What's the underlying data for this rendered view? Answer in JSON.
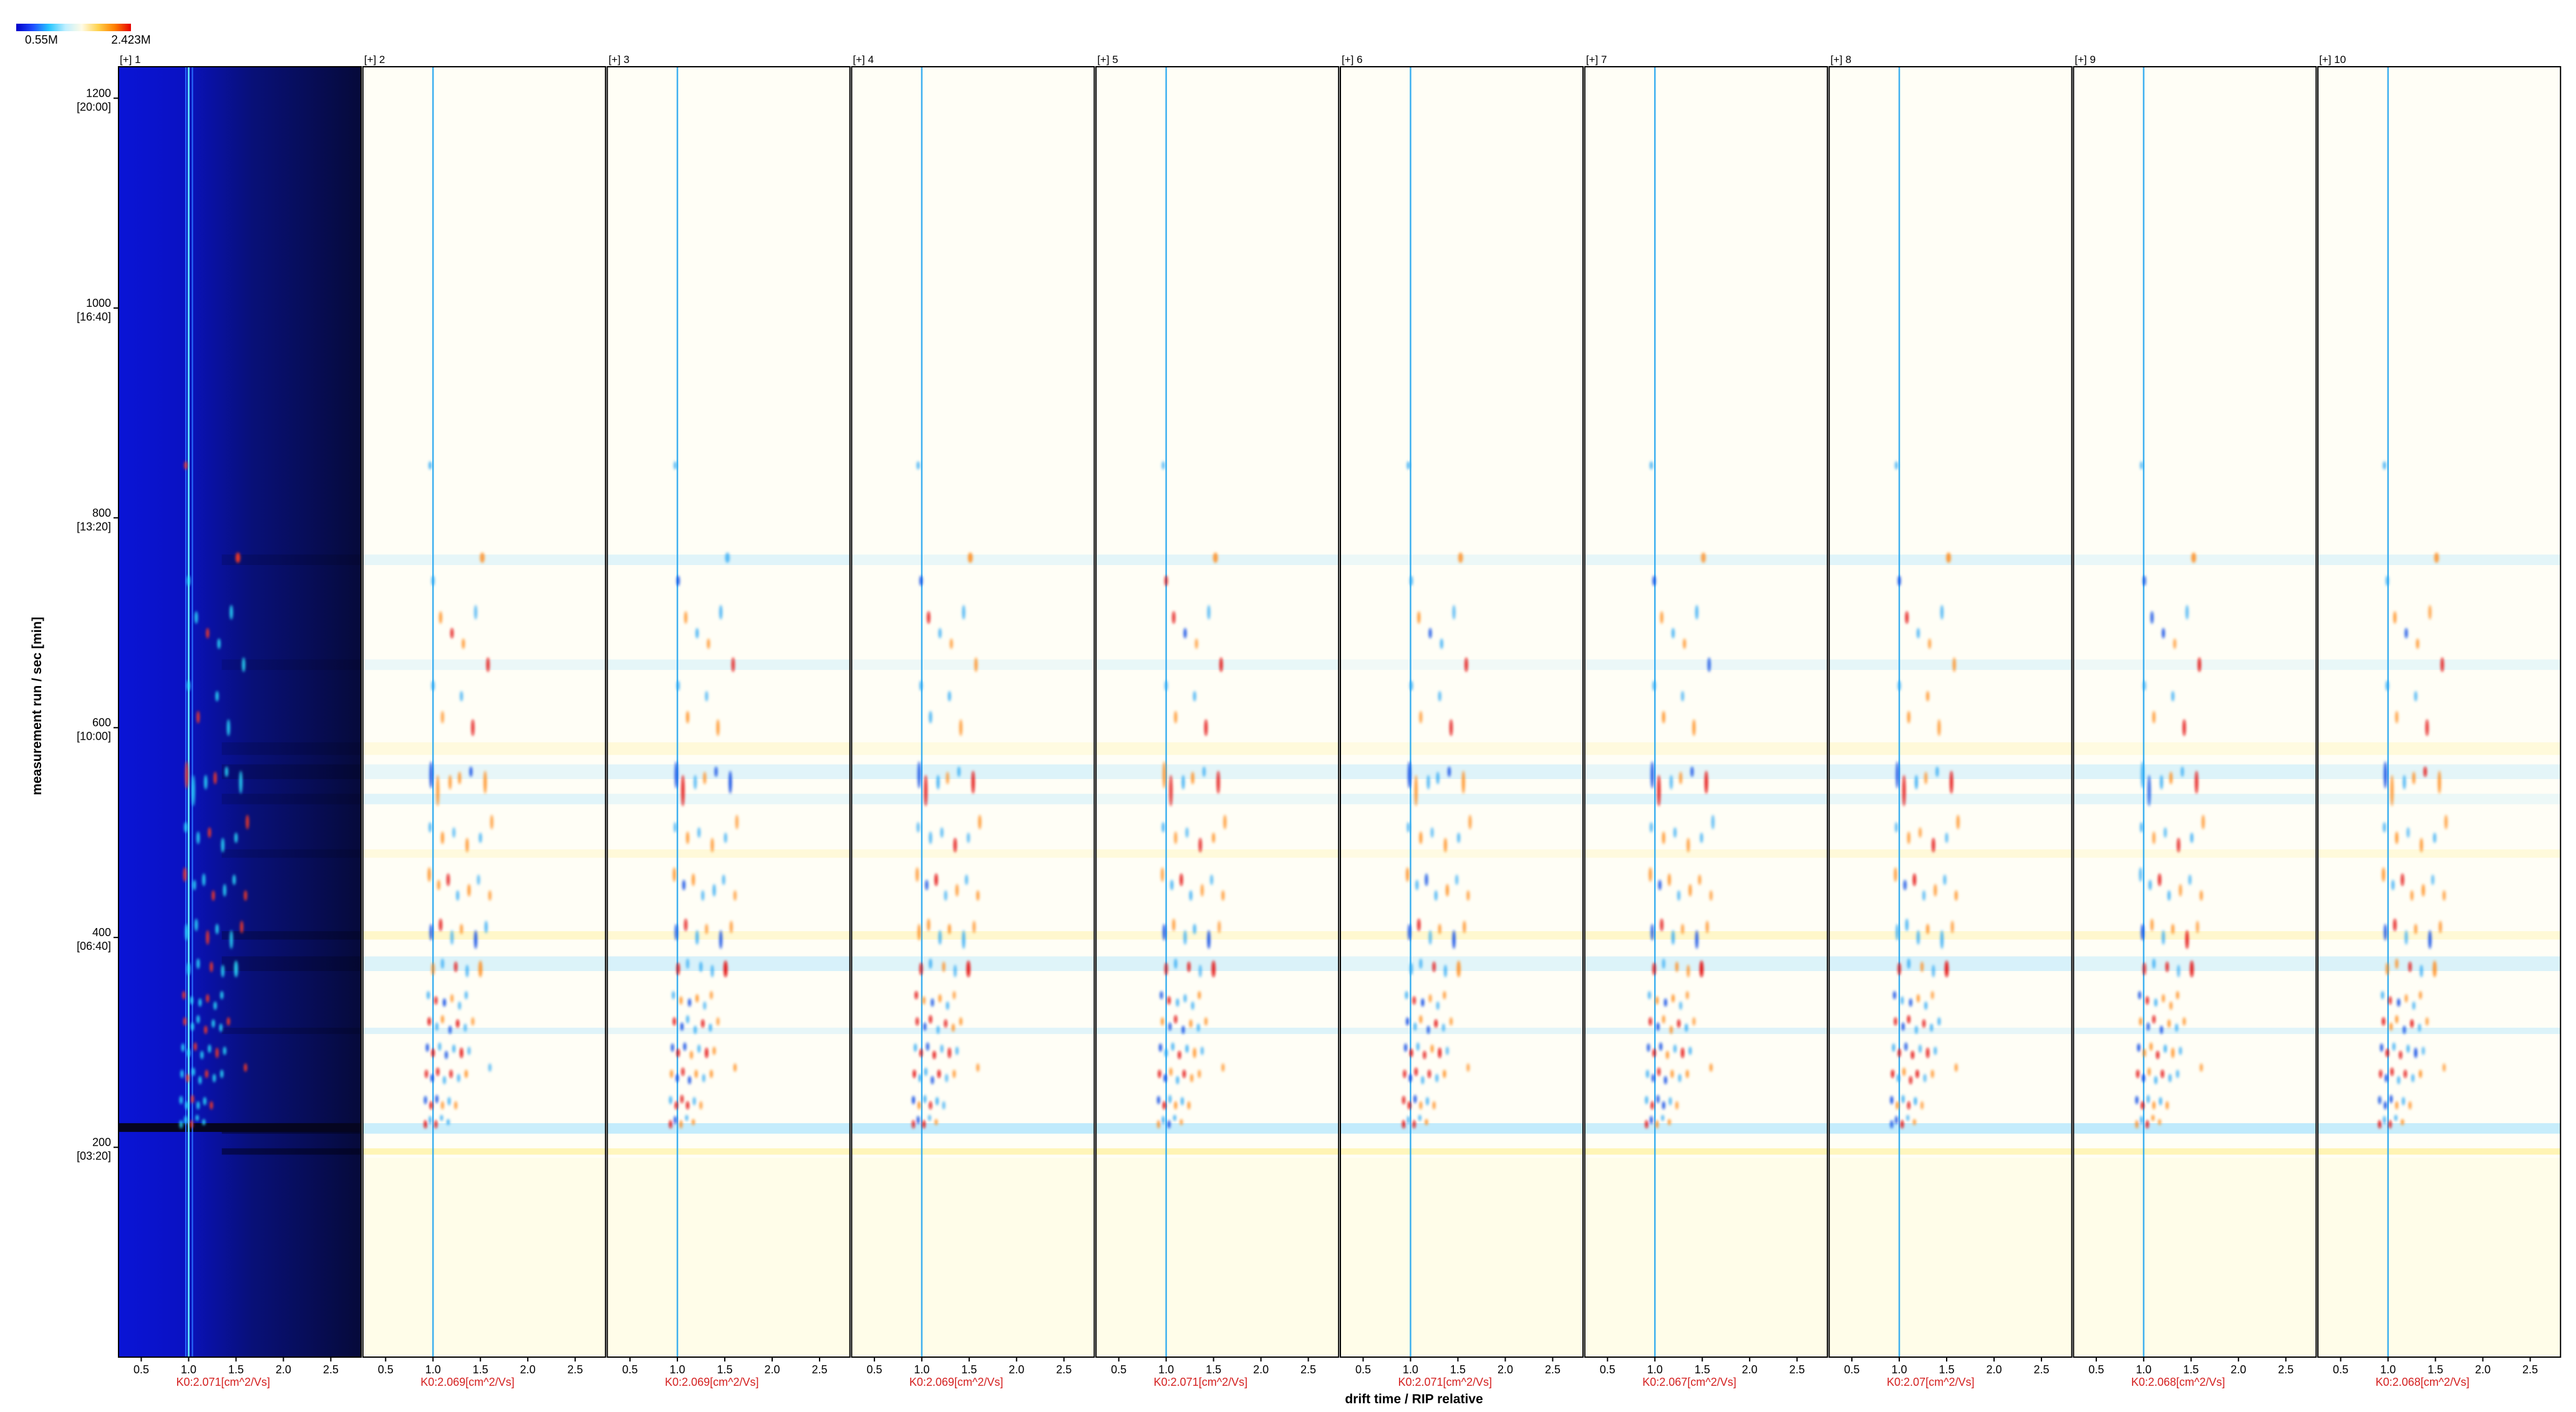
{
  "colorbar": {
    "min_label": "0.55M",
    "max_label": "2.423M",
    "gradient": [
      "#0000c8",
      "#1f4bff",
      "#26c6ff",
      "#bfefff",
      "#fffbe6",
      "#ffd24d",
      "#ff7f00",
      "#e60000"
    ]
  },
  "axes": {
    "ylabel": "measurement run / sec [min]",
    "xlabel": "drift time / RIP relative",
    "yticks": [
      {
        "value": 200,
        "label": "200",
        "sub": "[03:20]"
      },
      {
        "value": 400,
        "label": "400",
        "sub": "[06:40]"
      },
      {
        "value": 600,
        "label": "600",
        "sub": "[10:00]"
      },
      {
        "value": 800,
        "label": "800",
        "sub": "[13:20]"
      },
      {
        "value": 1000,
        "label": "1000",
        "sub": "[16:40]"
      },
      {
        "value": 1200,
        "label": "1200",
        "sub": "[20:00]"
      }
    ],
    "xticks": [
      "0.5",
      "1.0",
      "1.5",
      "2.0",
      "2.5"
    ],
    "xtick_values": [
      0.5,
      1.0,
      1.5,
      2.0,
      2.5
    ],
    "xlim": [
      0.26,
      2.82
    ],
    "ylim": [
      0,
      1230
    ]
  },
  "colors": {
    "frame": "#000000",
    "k0_label": "#d42020",
    "rip_line": "#2aa8f0",
    "reference_background": "#0c13c8",
    "difference_background": "#fffef6"
  },
  "chart_data": {
    "type": "heatmap",
    "xlabel": "drift time / RIP relative",
    "ylabel": "measurement run / sec [min]",
    "xlim": [
      0.26,
      2.82
    ],
    "ylim": [
      0,
      1230
    ],
    "colorbar_range": [
      "0.55M",
      "2.423M"
    ],
    "panels": [
      {
        "name": "[+] 1",
        "k0_label": "K0:2.071[cm^2/Vs]",
        "mode": "reference"
      },
      {
        "name": "[+] 2",
        "k0_label": "K0:2.069[cm^2/Vs]",
        "mode": "difference"
      },
      {
        "name": "[+] 3",
        "k0_label": "K0:2.069[cm^2/Vs]",
        "mode": "difference"
      },
      {
        "name": "[+] 4",
        "k0_label": "K0:2.069[cm^2/Vs]",
        "mode": "difference"
      },
      {
        "name": "[+] 5",
        "k0_label": "K0:2.071[cm^2/Vs]",
        "mode": "difference"
      },
      {
        "name": "[+] 6",
        "k0_label": "K0:2.071[cm^2/Vs]",
        "mode": "difference"
      },
      {
        "name": "[+] 7",
        "k0_label": "K0:2.067[cm^2/Vs]",
        "mode": "difference"
      },
      {
        "name": "[+] 8",
        "k0_label": "K0:2.07[cm^2/Vs]",
        "mode": "difference"
      },
      {
        "name": "[+] 9",
        "k0_label": "K0:2.068[cm^2/Vs]",
        "mode": "difference"
      },
      {
        "name": "[+] 10",
        "k0_label": "K0:2.068[cm^2/Vs]",
        "mode": "difference"
      }
    ],
    "rip_position": 1.0,
    "bands": [
      {
        "y": 218,
        "h": 10,
        "tone": "blue",
        "opacity": 0.55
      },
      {
        "y": 196,
        "h": 6,
        "tone": "yellow",
        "opacity": 0.6
      },
      {
        "y": 558,
        "h": 14,
        "tone": "blue",
        "opacity": 0.25
      },
      {
        "y": 532,
        "h": 10,
        "tone": "blue",
        "opacity": 0.2
      },
      {
        "y": 402,
        "h": 8,
        "tone": "yellow",
        "opacity": 0.35
      },
      {
        "y": 375,
        "h": 14,
        "tone": "blue",
        "opacity": 0.3
      },
      {
        "y": 311,
        "h": 6,
        "tone": "blue",
        "opacity": 0.25
      },
      {
        "y": 480,
        "h": 8,
        "tone": "yellow",
        "opacity": 0.2
      },
      {
        "y": 760,
        "h": 10,
        "tone": "blue",
        "opacity": 0.2
      },
      {
        "y": 660,
        "h": 10,
        "tone": "blue",
        "opacity": 0.15
      },
      {
        "y": 580,
        "h": 12,
        "tone": "yellow",
        "opacity": 0.2
      }
    ],
    "peaks": [
      {
        "x": 0.97,
        "y": 850,
        "w": 0.022,
        "h": 8,
        "s": -0.7
      },
      {
        "x": 1.0,
        "y": 740,
        "w": 0.024,
        "h": 10,
        "s": -0.9
      },
      {
        "x": 1.08,
        "y": 705,
        "w": 0.026,
        "h": 12,
        "s": 0.8
      },
      {
        "x": 1.2,
        "y": 690,
        "w": 0.03,
        "h": 10,
        "s": -0.8
      },
      {
        "x": 1.32,
        "y": 680,
        "w": 0.03,
        "h": 10,
        "s": 0.6
      },
      {
        "x": 1.45,
        "y": 710,
        "w": 0.03,
        "h": 14,
        "s": -0.6
      },
      {
        "x": 1.52,
        "y": 762,
        "w": 0.05,
        "h": 10,
        "s": 0.7
      },
      {
        "x": 1.58,
        "y": 660,
        "w": 0.03,
        "h": 14,
        "s": 0.9
      },
      {
        "x": 1.0,
        "y": 640,
        "w": 0.022,
        "h": 10,
        "s": -0.7
      },
      {
        "x": 1.1,
        "y": 610,
        "w": 0.026,
        "h": 12,
        "s": 0.7
      },
      {
        "x": 1.3,
        "y": 630,
        "w": 0.028,
        "h": 10,
        "s": -0.6
      },
      {
        "x": 1.42,
        "y": 600,
        "w": 0.028,
        "h": 16,
        "s": 0.8
      },
      {
        "x": 0.98,
        "y": 555,
        "w": 0.022,
        "h": 26,
        "s": -1.0
      },
      {
        "x": 1.05,
        "y": 540,
        "w": 0.026,
        "h": 30,
        "s": 0.9
      },
      {
        "x": 1.18,
        "y": 548,
        "w": 0.03,
        "h": 14,
        "s": -0.7
      },
      {
        "x": 1.28,
        "y": 552,
        "w": 0.03,
        "h": 12,
        "s": 0.7
      },
      {
        "x": 1.4,
        "y": 558,
        "w": 0.028,
        "h": 10,
        "s": -0.8
      },
      {
        "x": 1.55,
        "y": 548,
        "w": 0.03,
        "h": 22,
        "s": 1.0
      },
      {
        "x": 1.62,
        "y": 510,
        "w": 0.03,
        "h": 14,
        "s": 0.6
      },
      {
        "x": 0.97,
        "y": 505,
        "w": 0.024,
        "h": 10,
        "s": -0.6
      },
      {
        "x": 1.1,
        "y": 495,
        "w": 0.026,
        "h": 12,
        "s": 0.7
      },
      {
        "x": 1.22,
        "y": 500,
        "w": 0.03,
        "h": 10,
        "s": -0.5
      },
      {
        "x": 1.36,
        "y": 488,
        "w": 0.03,
        "h": 14,
        "s": 0.8
      },
      {
        "x": 1.5,
        "y": 495,
        "w": 0.03,
        "h": 10,
        "s": -0.6
      },
      {
        "x": 0.96,
        "y": 460,
        "w": 0.022,
        "h": 14,
        "s": 0.7
      },
      {
        "x": 1.06,
        "y": 450,
        "w": 0.026,
        "h": 10,
        "s": -0.8
      },
      {
        "x": 1.16,
        "y": 455,
        "w": 0.03,
        "h": 12,
        "s": 0.9
      },
      {
        "x": 1.26,
        "y": 440,
        "w": 0.028,
        "h": 10,
        "s": -0.6
      },
      {
        "x": 1.38,
        "y": 445,
        "w": 0.03,
        "h": 12,
        "s": 0.7
      },
      {
        "x": 1.48,
        "y": 455,
        "w": 0.03,
        "h": 10,
        "s": -0.5
      },
      {
        "x": 1.6,
        "y": 440,
        "w": 0.03,
        "h": 10,
        "s": 0.6
      },
      {
        "x": 0.98,
        "y": 405,
        "w": 0.024,
        "h": 16,
        "s": -0.9
      },
      {
        "x": 1.08,
        "y": 412,
        "w": 0.026,
        "h": 12,
        "s": 0.8
      },
      {
        "x": 1.2,
        "y": 400,
        "w": 0.028,
        "h": 14,
        "s": -0.7
      },
      {
        "x": 1.3,
        "y": 408,
        "w": 0.03,
        "h": 10,
        "s": 0.7
      },
      {
        "x": 1.45,
        "y": 398,
        "w": 0.03,
        "h": 18,
        "s": -1.0
      },
      {
        "x": 1.56,
        "y": 410,
        "w": 0.032,
        "h": 12,
        "s": 0.6
      },
      {
        "x": 1.0,
        "y": 370,
        "w": 0.028,
        "h": 12,
        "s": 0.9
      },
      {
        "x": 1.1,
        "y": 375,
        "w": 0.03,
        "h": 10,
        "s": -0.7
      },
      {
        "x": 1.24,
        "y": 372,
        "w": 0.03,
        "h": 10,
        "s": 0.8
      },
      {
        "x": 1.36,
        "y": 368,
        "w": 0.028,
        "h": 12,
        "s": -0.6
      },
      {
        "x": 1.5,
        "y": 370,
        "w": 0.04,
        "h": 16,
        "s": 1.0
      },
      {
        "x": 0.95,
        "y": 345,
        "w": 0.02,
        "h": 8,
        "s": -0.8
      },
      {
        "x": 1.03,
        "y": 340,
        "w": 0.022,
        "h": 8,
        "s": 0.8
      },
      {
        "x": 1.12,
        "y": 338,
        "w": 0.024,
        "h": 8,
        "s": -0.9
      },
      {
        "x": 1.2,
        "y": 342,
        "w": 0.024,
        "h": 8,
        "s": 0.7
      },
      {
        "x": 1.28,
        "y": 335,
        "w": 0.024,
        "h": 8,
        "s": -0.6
      },
      {
        "x": 1.35,
        "y": 345,
        "w": 0.024,
        "h": 8,
        "s": 0.6
      },
      {
        "x": 0.96,
        "y": 320,
        "w": 0.02,
        "h": 8,
        "s": 0.9
      },
      {
        "x": 1.04,
        "y": 315,
        "w": 0.022,
        "h": 8,
        "s": -0.9
      },
      {
        "x": 1.1,
        "y": 322,
        "w": 0.022,
        "h": 8,
        "s": 0.8
      },
      {
        "x": 1.18,
        "y": 312,
        "w": 0.024,
        "h": 8,
        "s": -0.8
      },
      {
        "x": 1.26,
        "y": 318,
        "w": 0.024,
        "h": 8,
        "s": 0.9
      },
      {
        "x": 1.34,
        "y": 314,
        "w": 0.024,
        "h": 8,
        "s": -0.7
      },
      {
        "x": 1.42,
        "y": 320,
        "w": 0.026,
        "h": 8,
        "s": 0.6
      },
      {
        "x": 0.94,
        "y": 295,
        "w": 0.02,
        "h": 8,
        "s": -0.9
      },
      {
        "x": 1.0,
        "y": 290,
        "w": 0.02,
        "h": 8,
        "s": 1.0
      },
      {
        "x": 1.07,
        "y": 296,
        "w": 0.022,
        "h": 8,
        "s": -0.8
      },
      {
        "x": 1.14,
        "y": 288,
        "w": 0.022,
        "h": 8,
        "s": 0.9
      },
      {
        "x": 1.22,
        "y": 294,
        "w": 0.024,
        "h": 8,
        "s": -0.7
      },
      {
        "x": 1.3,
        "y": 290,
        "w": 0.024,
        "h": 10,
        "s": 1.0
      },
      {
        "x": 1.38,
        "y": 292,
        "w": 0.024,
        "h": 8,
        "s": -0.6
      },
      {
        "x": 0.93,
        "y": 270,
        "w": 0.02,
        "h": 8,
        "s": 0.9
      },
      {
        "x": 0.99,
        "y": 266,
        "w": 0.02,
        "h": 8,
        "s": -1.0
      },
      {
        "x": 1.05,
        "y": 272,
        "w": 0.02,
        "h": 8,
        "s": 0.8
      },
      {
        "x": 1.12,
        "y": 264,
        "w": 0.022,
        "h": 8,
        "s": -0.8
      },
      {
        "x": 1.19,
        "y": 270,
        "w": 0.022,
        "h": 8,
        "s": 0.9
      },
      {
        "x": 1.27,
        "y": 266,
        "w": 0.024,
        "h": 8,
        "s": -0.6
      },
      {
        "x": 1.35,
        "y": 270,
        "w": 0.024,
        "h": 8,
        "s": 0.7
      },
      {
        "x": 1.6,
        "y": 276,
        "w": 0.03,
        "h": 8,
        "s": 0.6
      },
      {
        "x": 0.92,
        "y": 245,
        "w": 0.02,
        "h": 8,
        "s": -0.9
      },
      {
        "x": 0.98,
        "y": 240,
        "w": 0.02,
        "h": 8,
        "s": 1.0
      },
      {
        "x": 1.04,
        "y": 246,
        "w": 0.02,
        "h": 8,
        "s": -0.8
      },
      {
        "x": 1.1,
        "y": 240,
        "w": 0.022,
        "h": 8,
        "s": 0.8
      },
      {
        "x": 1.17,
        "y": 244,
        "w": 0.022,
        "h": 8,
        "s": -0.7
      },
      {
        "x": 1.24,
        "y": 240,
        "w": 0.022,
        "h": 8,
        "s": 0.6
      },
      {
        "x": 0.92,
        "y": 222,
        "w": 0.02,
        "h": 8,
        "s": 0.9
      },
      {
        "x": 0.97,
        "y": 226,
        "w": 0.02,
        "h": 8,
        "s": -0.8
      },
      {
        "x": 1.03,
        "y": 222,
        "w": 0.02,
        "h": 8,
        "s": 0.9
      },
      {
        "x": 1.09,
        "y": 228,
        "w": 0.02,
        "h": 6,
        "s": -0.6
      },
      {
        "x": 1.16,
        "y": 224,
        "w": 0.022,
        "h": 6,
        "s": 0.7
      }
    ]
  }
}
